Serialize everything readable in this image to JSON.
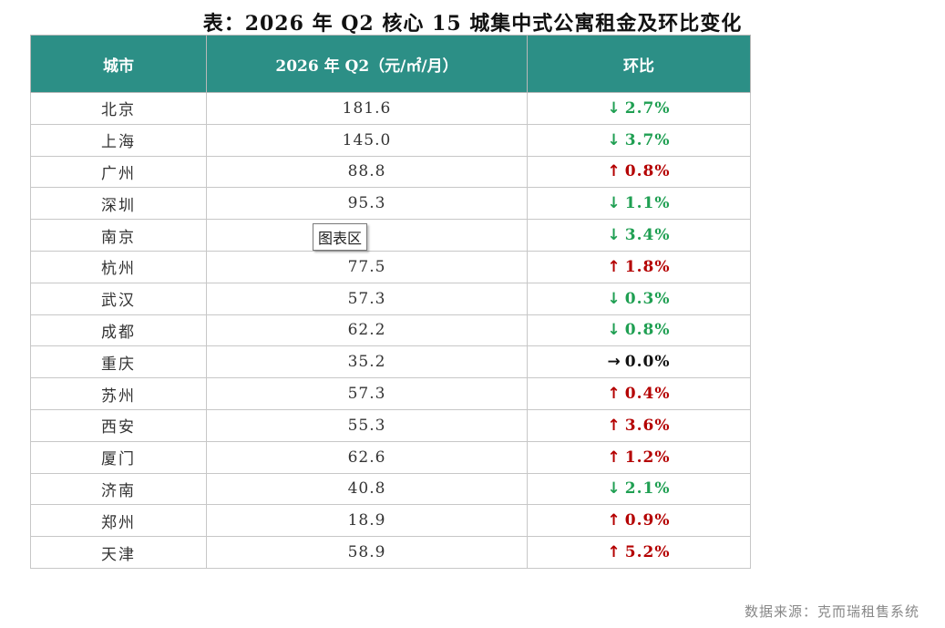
{
  "page": {
    "title": "表：2026 年 Q2 核心 15 城集中式公寓租金及环比变化",
    "source": "数据来源：克而瑞租售系统",
    "tooltip": "图表区"
  },
  "colors": {
    "header_bg": "#2c8f86",
    "header_text": "#ffffff",
    "down": "#1f9f52",
    "up": "#b40000",
    "flat": "#111111"
  },
  "chart_data": {
    "type": "table",
    "title": "表：2026 年 Q2 核心 15 城集中式公寓租金及环比变化",
    "columns": [
      "城市",
      "2026 年 Q2（元/㎡/月）",
      "环比"
    ],
    "rows": [
      {
        "city": "北京",
        "rent": "181.6",
        "change": "2.7%",
        "direction": "down"
      },
      {
        "city": "上海",
        "rent": "145.0",
        "change": "3.7%",
        "direction": "down"
      },
      {
        "city": "广州",
        "rent": "88.8",
        "change": "0.8%",
        "direction": "up"
      },
      {
        "city": "深圳",
        "rent": "95.3",
        "change": "1.1%",
        "direction": "down"
      },
      {
        "city": "南京",
        "rent": "",
        "change": "3.4%",
        "direction": "down"
      },
      {
        "city": "杭州",
        "rent": "77.5",
        "change": "1.8%",
        "direction": "up"
      },
      {
        "city": "武汉",
        "rent": "57.3",
        "change": "0.3%",
        "direction": "down"
      },
      {
        "city": "成都",
        "rent": "62.2",
        "change": "0.8%",
        "direction": "down"
      },
      {
        "city": "重庆",
        "rent": "35.2",
        "change": "0.0%",
        "direction": "flat"
      },
      {
        "city": "苏州",
        "rent": "57.3",
        "change": "0.4%",
        "direction": "up"
      },
      {
        "city": "西安",
        "rent": "55.3",
        "change": "3.6%",
        "direction": "up"
      },
      {
        "city": "厦门",
        "rent": "62.6",
        "change": "1.2%",
        "direction": "up"
      },
      {
        "city": "济南",
        "rent": "40.8",
        "change": "2.1%",
        "direction": "down"
      },
      {
        "city": "郑州",
        "rent": "18.9",
        "change": "0.9%",
        "direction": "up"
      },
      {
        "city": "天津",
        "rent": "58.9",
        "change": "5.2%",
        "direction": "up"
      }
    ]
  }
}
